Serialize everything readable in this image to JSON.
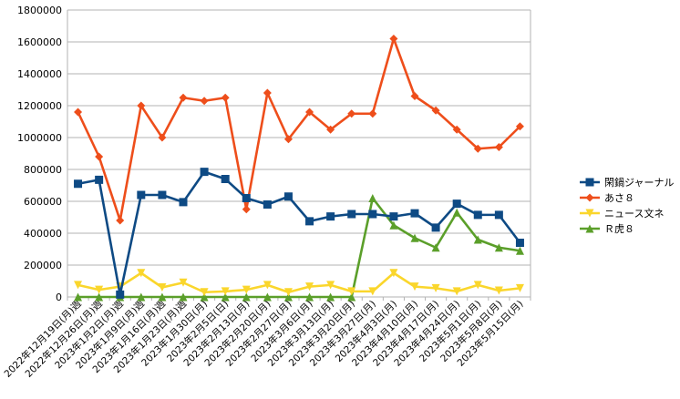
{
  "chart_data": {
    "type": "line",
    "title": "",
    "xlabel": "",
    "ylabel": "",
    "ylim": [
      0,
      1800000
    ],
    "yticks": [
      0,
      200000,
      400000,
      600000,
      800000,
      1000000,
      1200000,
      1400000,
      1600000,
      1800000
    ],
    "grid": "horizontal",
    "legend_position": "right",
    "categories": [
      "2022年12月19日(月)週",
      "2022年12月26日(月)週",
      "2023年1月2日(月)週",
      "2023年1月9日(月)週",
      "2023年1月16日(月)週",
      "2023年1月23日(月)週",
      "2023年1月30日(月)",
      "2023年2月5日(日)",
      "2023年2月13日(月)",
      "2023年2月20日(月)",
      "2023年2月27日(月)",
      "2023年3月6日(月)",
      "2023年3月13日(月)",
      "2023年3月20日(月)",
      "2023年3月27日(月)",
      "2023年4月3日(月)",
      "2023年4月10日(月)",
      "2023年4月17日(月)",
      "2023年4月24日(月)",
      "2023年5月1日(月)",
      "2023年5月8日(月)",
      "2023年5月15日(月)"
    ],
    "series": [
      {
        "name": "閑鍋ジャーナル",
        "color": "#0e4a84",
        "marker": "square",
        "values": [
          710000,
          735000,
          15000,
          640000,
          640000,
          595000,
          785000,
          740000,
          620000,
          580000,
          630000,
          475000,
          505000,
          520000,
          520000,
          505000,
          525000,
          435000,
          585000,
          515000,
          515000,
          340000
        ]
      },
      {
        "name": "あさ８",
        "color": "#ee4e1b",
        "marker": "diamond",
        "values": [
          1160000,
          880000,
          480000,
          1200000,
          1000000,
          1250000,
          1230000,
          1250000,
          550000,
          1280000,
          990000,
          1160000,
          1050000,
          1150000,
          1150000,
          1620000,
          1260000,
          1170000,
          1050000,
          930000,
          940000,
          1070000
        ]
      },
      {
        "name": "ニュース文ネ",
        "color": "#fad62c",
        "marker": "triangle-down",
        "values": [
          75000,
          45000,
          65000,
          150000,
          60000,
          90000,
          30000,
          35000,
          45000,
          75000,
          30000,
          65000,
          75000,
          35000,
          35000,
          150000,
          65000,
          55000,
          35000,
          75000,
          40000,
          55000
        ]
      },
      {
        "name": "Ｒ虎８",
        "color": "#5b9f2a",
        "marker": "triangle-up",
        "values": [
          0,
          0,
          0,
          0,
          0,
          0,
          0,
          0,
          0,
          0,
          0,
          0,
          0,
          0,
          620000,
          450000,
          370000,
          310000,
          530000,
          360000,
          310000,
          290000
        ]
      }
    ]
  }
}
